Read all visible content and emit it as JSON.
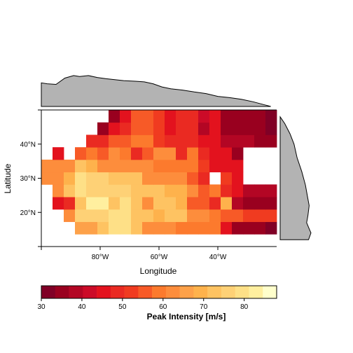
{
  "chart_data": {
    "type": "heatmap",
    "xlabel": "Longitude",
    "ylabel": "Latitude",
    "x_ticks": [
      {
        "value": -80,
        "label": "80°W"
      },
      {
        "value": -60,
        "label": "60°W"
      },
      {
        "value": -40,
        "label": "40°W"
      }
    ],
    "y_ticks": [
      {
        "value": 20,
        "label": "20°N"
      },
      {
        "value": 30,
        "label": "30°N"
      },
      {
        "value": 40,
        "label": "40°N"
      }
    ],
    "xlim": [
      -100,
      -20
    ],
    "ylim": [
      10,
      50
    ],
    "x_centers": [
      -99,
      -95,
      -91,
      -87,
      -83,
      -79,
      -75,
      -71,
      -67,
      -63,
      -59,
      -55,
      -51,
      -47,
      -43,
      -39,
      -35,
      -31,
      -27,
      -23,
      -21
    ],
    "y_centers": [
      11,
      15,
      19,
      23,
      27,
      31,
      35,
      39,
      43,
      47,
      49
    ],
    "grid_note": "values are peak intensity in m/s; null = no data",
    "values": [
      [
        null,
        null,
        null,
        null,
        null,
        null,
        null,
        null,
        null,
        null,
        null,
        null,
        null,
        null,
        null,
        null,
        null,
        null,
        null,
        null,
        null
      ],
      [
        null,
        null,
        null,
        67,
        67,
        72,
        80,
        80,
        72,
        64,
        64,
        64,
        60,
        60,
        58,
        58,
        44,
        36,
        36,
        36,
        33
      ],
      [
        null,
        null,
        62,
        76,
        76,
        76,
        80,
        80,
        72,
        72,
        68,
        72,
        72,
        64,
        64,
        60,
        56,
        56,
        52,
        52,
        52
      ],
      [
        null,
        44,
        50,
        72,
        84,
        84,
        72,
        80,
        72,
        64,
        72,
        72,
        68,
        56,
        56,
        48,
        68,
        40,
        36,
        36,
        36
      ],
      [
        null,
        64,
        72,
        80,
        76,
        76,
        76,
        76,
        72,
        72,
        72,
        68,
        68,
        64,
        56,
        60,
        48,
        44,
        40,
        40,
        40
      ],
      [
        62,
        62,
        68,
        80,
        76,
        76,
        72,
        72,
        72,
        64,
        64,
        64,
        64,
        56,
        48,
        null,
        52,
        44,
        null,
        null,
        null
      ],
      [
        62,
        62,
        62,
        72,
        68,
        64,
        64,
        62,
        62,
        62,
        60,
        60,
        60,
        60,
        52,
        44,
        44,
        44,
        null,
        null,
        null
      ],
      [
        null,
        44,
        null,
        56,
        58,
        56,
        64,
        60,
        50,
        56,
        62,
        62,
        48,
        60,
        50,
        44,
        44,
        36,
        null,
        null,
        null
      ],
      [
        null,
        null,
        null,
        null,
        48,
        50,
        56,
        56,
        60,
        60,
        52,
        48,
        48,
        48,
        44,
        44,
        40,
        40,
        40,
        36,
        36
      ],
      [
        null,
        null,
        null,
        null,
        null,
        36,
        44,
        50,
        56,
        56,
        52,
        44,
        48,
        48,
        40,
        44,
        36,
        36,
        36,
        36,
        33
      ],
      [
        null,
        null,
        null,
        null,
        null,
        null,
        34,
        44,
        56,
        56,
        52,
        44,
        48,
        48,
        42,
        44,
        36,
        36,
        36,
        36,
        33
      ]
    ],
    "top_marginal": [
      {
        "x": -100,
        "y": 0.75
      },
      {
        "x": -98,
        "y": 0.72
      },
      {
        "x": -95,
        "y": 0.7
      },
      {
        "x": -92,
        "y": 0.9
      },
      {
        "x": -89,
        "y": 0.98
      },
      {
        "x": -87,
        "y": 0.95
      },
      {
        "x": -84,
        "y": 0.98
      },
      {
        "x": -81,
        "y": 0.92
      },
      {
        "x": -78,
        "y": 0.88
      },
      {
        "x": -75,
        "y": 0.85
      },
      {
        "x": -72,
        "y": 0.82
      },
      {
        "x": -68,
        "y": 0.8
      },
      {
        "x": -65,
        "y": 0.78
      },
      {
        "x": -62,
        "y": 0.72
      },
      {
        "x": -59,
        "y": 0.62
      },
      {
        "x": -56,
        "y": 0.56
      },
      {
        "x": -52,
        "y": 0.52
      },
      {
        "x": -48,
        "y": 0.46
      },
      {
        "x": -44,
        "y": 0.41
      },
      {
        "x": -40,
        "y": 0.32
      },
      {
        "x": -36,
        "y": 0.28
      },
      {
        "x": -32,
        "y": 0.23
      },
      {
        "x": -28,
        "y": 0.15
      },
      {
        "x": -24,
        "y": 0.05
      },
      {
        "x": -22,
        "y": 0.0
      }
    ],
    "right_marginal": [
      {
        "y": 48,
        "v": 0.0
      },
      {
        "y": 46,
        "v": 0.15
      },
      {
        "y": 43,
        "v": 0.32
      },
      {
        "y": 40,
        "v": 0.45
      },
      {
        "y": 36,
        "v": 0.55
      },
      {
        "y": 32,
        "v": 0.7
      },
      {
        "y": 28,
        "v": 0.82
      },
      {
        "y": 25,
        "v": 0.88
      },
      {
        "y": 22,
        "v": 0.94
      },
      {
        "y": 19,
        "v": 0.9
      },
      {
        "y": 17,
        "v": 0.86
      },
      {
        "y": 15,
        "v": 0.95
      },
      {
        "y": 14,
        "v": 1.0
      },
      {
        "y": 12,
        "v": 0.92
      },
      {
        "y": 12,
        "v": 0.0
      }
    ],
    "colorbar": {
      "title": "Peak Intensity [m/s]",
      "min": 30,
      "max": 88,
      "ticks": [
        30,
        40,
        50,
        60,
        70,
        80
      ],
      "tick_labels": [
        "30",
        "40",
        "50",
        "60",
        "70",
        "80"
      ],
      "colors": [
        "#800026",
        "#99001f",
        "#b30624",
        "#cc0b28",
        "#e3121e",
        "#ea2a22",
        "#f03b20",
        "#f75a27",
        "#fc7a2d",
        "#fd8d3c",
        "#fda149",
        "#feb24c",
        "#fec362",
        "#fed176",
        "#fee087",
        "#ffef9f",
        "#ffffcc"
      ]
    }
  }
}
